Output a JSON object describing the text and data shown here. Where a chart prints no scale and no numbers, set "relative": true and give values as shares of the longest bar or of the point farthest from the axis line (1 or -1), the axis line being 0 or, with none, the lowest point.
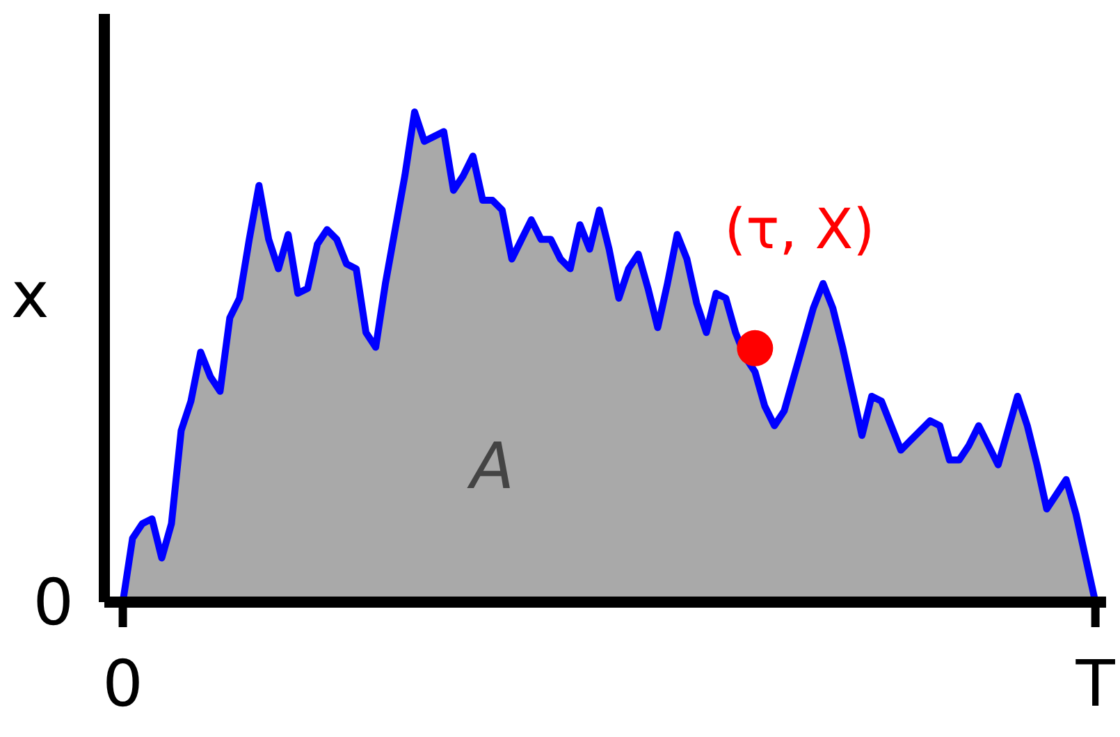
{
  "chart_data": {
    "type": "area",
    "relative": true,
    "ylabel": "x",
    "categories": [
      "0",
      null,
      null,
      null,
      null,
      null,
      null,
      null,
      null,
      null,
      null,
      null,
      null,
      null,
      null,
      null,
      null,
      null,
      null,
      null,
      null,
      null,
      null,
      null,
      null,
      null,
      null,
      null,
      null,
      null,
      null,
      null,
      null,
      null,
      null,
      null,
      null,
      null,
      null,
      null,
      null,
      null,
      null,
      null,
      null,
      null,
      null,
      null,
      null,
      null,
      null,
      null,
      null,
      null,
      null,
      null,
      null,
      null,
      null,
      null,
      null,
      null,
      null,
      null,
      null,
      null,
      null,
      null,
      null,
      null,
      null,
      null,
      null,
      null,
      null,
      null,
      null,
      null,
      null,
      null,
      null,
      null,
      null,
      null,
      null,
      null,
      null,
      null,
      null,
      null,
      null,
      null,
      null,
      null,
      null,
      null,
      null,
      null,
      null,
      null,
      "T"
    ],
    "annotations": [
      "A",
      "(τ, X)",
      "0"
    ],
    "series": [
      {
        "color": "#0000ff",
        "values": [
          0,
          0.13,
          0.16,
          0.17,
          0.09,
          0.16,
          0.35,
          0.41,
          0.51,
          0.46,
          0.43,
          0.58,
          0.62,
          0.74,
          0.85,
          0.74,
          0.68,
          0.75,
          0.63,
          0.64,
          0.73,
          0.76,
          0.74,
          0.69,
          0.68,
          0.55,
          0.52,
          0.65,
          0.76,
          0.87,
          1,
          0.94,
          0.95,
          0.96,
          0.84,
          0.87,
          0.91,
          0.82,
          0.82,
          0.8,
          0.7,
          0.74,
          0.78,
          0.74,
          0.74,
          0.7,
          0.68,
          0.77,
          0.72,
          0.8,
          0.72,
          0.62,
          0.68,
          0.71,
          0.64,
          0.56,
          0.65,
          0.75,
          0.7,
          0.61,
          0.55,
          0.63,
          0.62,
          0.55,
          0.5,
          0.47,
          0.4,
          0.36,
          0.39,
          0.46,
          0.53,
          0.6,
          0.65,
          0.6,
          0.52,
          0.43,
          0.34,
          0.42,
          0.41,
          0.36,
          0.31,
          0.33,
          0.35,
          0.37,
          0.36,
          0.29,
          0.29,
          0.32,
          0.36,
          0.32,
          0.28,
          0.35,
          0.42,
          0.36,
          0.28,
          0.19,
          0.22,
          0.25,
          0.18,
          0.09,
          0
        ]
      },
      {
        "type": "scatter",
        "color": "#ff0000",
        "values": [
          null,
          null,
          null,
          null,
          null,
          null,
          null,
          null,
          null,
          null,
          null,
          null,
          null,
          null,
          null,
          null,
          null,
          null,
          null,
          null,
          null,
          null,
          null,
          null,
          null,
          null,
          null,
          null,
          null,
          null,
          null,
          null,
          null,
          null,
          null,
          null,
          null,
          null,
          null,
          null,
          null,
          null,
          null,
          null,
          null,
          null,
          null,
          null,
          null,
          null,
          null,
          null,
          null,
          null,
          null,
          null,
          null,
          null,
          null,
          null,
          null,
          null,
          null,
          null,
          null,
          0.518,
          null,
          null,
          null,
          null,
          null,
          null,
          null,
          null,
          null,
          null,
          null,
          null,
          null,
          null,
          null,
          null,
          null,
          null,
          null,
          null,
          null,
          null,
          null,
          null,
          null,
          null,
          null,
          null,
          null,
          null,
          null,
          null,
          null,
          null,
          null
        ]
      }
    ]
  }
}
